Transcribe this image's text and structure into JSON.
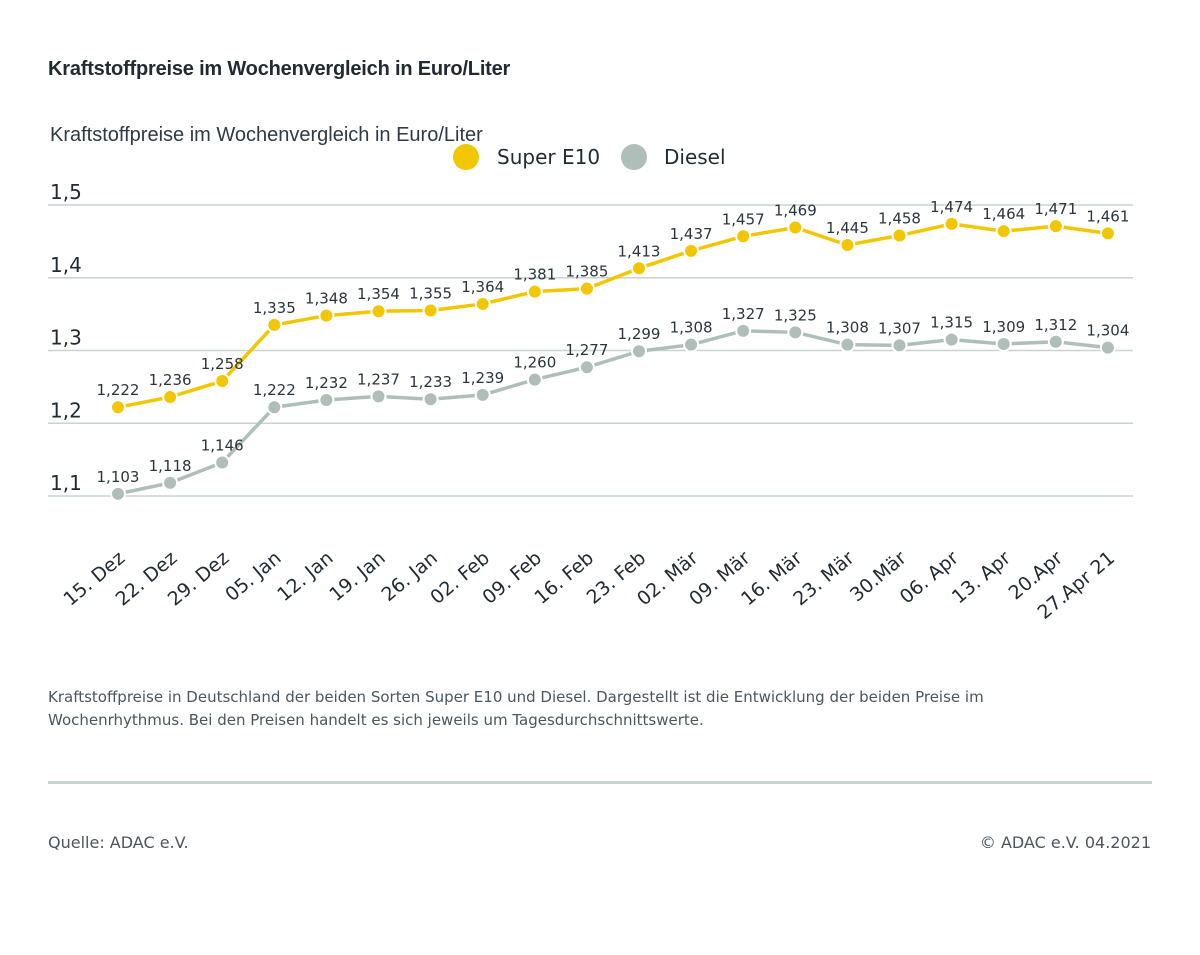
{
  "title": "Kraftstoffpreise im Wochenvergleich in Euro/Liter",
  "caption": "Kraftstoffpreise in Deutschland der beiden Sorten Super E10 und Diesel. Dargestellt ist die Entwicklung der beiden Preise im Wochenrhythmus. Bei den Preisen handelt es sich jeweils um Tagesdurchschnittswerte.",
  "source": "Quelle: ADAC e.V.",
  "copyright": "© ADAC e.V. 04.2021",
  "chart_data": {
    "type": "line",
    "title": "Kraftstoffpreise im Wochenvergleich in Euro/Liter",
    "xlabel": "",
    "ylabel": "",
    "ylim": [
      1.1,
      1.5
    ],
    "yticks": [
      1.5,
      1.4,
      1.3,
      1.2,
      1.1
    ],
    "ytick_labels": [
      "1,5",
      "1,4",
      "1,3",
      "1,2",
      "1,1"
    ],
    "grid": true,
    "legend_position": "top",
    "categories": [
      "15. Dez",
      "22. Dez",
      "29. Dez",
      "05. Jan",
      "12. Jan",
      "19. Jan",
      "26. Jan",
      "02. Feb",
      "09. Feb",
      "16. Feb",
      "23. Feb",
      "02. Mär",
      "09. Mär",
      "16. Mär",
      "23. Mär",
      "30.Mär",
      "06. Apr",
      "13. Apr",
      "20.Apr",
      "27.Apr 21"
    ],
    "series": [
      {
        "name": "Super E10",
        "color": "#f2c600",
        "values": [
          1.222,
          1.236,
          1.258,
          1.335,
          1.348,
          1.354,
          1.355,
          1.364,
          1.381,
          1.385,
          1.413,
          1.437,
          1.457,
          1.469,
          1.445,
          1.458,
          1.474,
          1.464,
          1.471,
          1.461
        ],
        "labels": [
          "1,222",
          "1,236",
          "1,258",
          "1,335",
          "1,348",
          "1,354",
          "1,355",
          "1,364",
          "1,381",
          "1,385",
          "1,413",
          "1,437",
          "1,457",
          "1,469",
          "1,445",
          "1,458",
          "1,474",
          "1,464",
          "1,471",
          "1,461"
        ]
      },
      {
        "name": "Diesel",
        "color": "#aebfba",
        "values": [
          1.103,
          1.118,
          1.146,
          1.222,
          1.232,
          1.237,
          1.233,
          1.239,
          1.26,
          1.277,
          1.299,
          1.308,
          1.327,
          1.325,
          1.308,
          1.307,
          1.315,
          1.309,
          1.312,
          1.304
        ],
        "labels": [
          "1,103",
          "1,118",
          "1,146",
          "1,222",
          "1,232",
          "1,237",
          "1,233",
          "1,239",
          "1,260",
          "1,277",
          "1,299",
          "1,308",
          "1,327",
          "1,325",
          "1,308",
          "1,307",
          "1,315",
          "1,309",
          "1,312",
          "1,304"
        ]
      }
    ]
  }
}
